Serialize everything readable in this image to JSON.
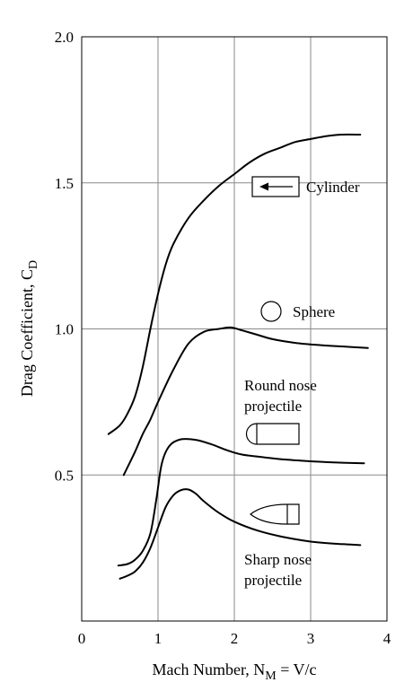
{
  "chart_data": {
    "type": "line",
    "title": "",
    "xlabel": "Mach Number, N",
    "xlabel_sub": "M",
    "xlabel_tail": " = V/c",
    "ylabel": "Drag Coefficient, C",
    "ylabel_sub": "D",
    "xlim": [
      0,
      4
    ],
    "ylim": [
      0,
      2.0
    ],
    "x_ticks": [
      "0",
      "1",
      "2",
      "3",
      "4"
    ],
    "y_ticks": [
      "0.5",
      "1.0",
      "1.5",
      "2.0"
    ],
    "x_tick_values": [
      0,
      1,
      2,
      3,
      4
    ],
    "y_tick_values": [
      0.5,
      1.0,
      1.5,
      2.0
    ],
    "grid": true,
    "series": [
      {
        "name": "Cylinder",
        "x": [
          0.35,
          0.5,
          0.6,
          0.7,
          0.8,
          0.9,
          1.0,
          1.1,
          1.2,
          1.4,
          1.6,
          1.8,
          2.0,
          2.2,
          2.4,
          2.6,
          2.8,
          3.0,
          3.2,
          3.4,
          3.65
        ],
        "y": [
          0.64,
          0.67,
          0.71,
          0.77,
          0.87,
          1.0,
          1.12,
          1.22,
          1.29,
          1.38,
          1.44,
          1.49,
          1.53,
          1.57,
          1.6,
          1.62,
          1.64,
          1.65,
          1.66,
          1.665,
          1.665
        ]
      },
      {
        "name": "Sphere",
        "x": [
          0.55,
          0.7,
          0.8,
          0.9,
          1.0,
          1.2,
          1.4,
          1.6,
          1.8,
          1.95,
          2.1,
          2.3,
          2.5,
          2.8,
          3.1,
          3.4,
          3.75
        ],
        "y": [
          0.5,
          0.58,
          0.64,
          0.69,
          0.75,
          0.86,
          0.95,
          0.99,
          1.0,
          1.005,
          0.995,
          0.98,
          0.965,
          0.952,
          0.945,
          0.94,
          0.935
        ]
      },
      {
        "name": "Round nose projectile",
        "x": [
          0.48,
          0.6,
          0.7,
          0.8,
          0.9,
          0.98,
          1.05,
          1.15,
          1.3,
          1.5,
          1.7,
          1.9,
          2.1,
          2.4,
          2.7,
          3.0,
          3.3,
          3.7
        ],
        "y": [
          0.19,
          0.195,
          0.21,
          0.24,
          0.3,
          0.42,
          0.54,
          0.6,
          0.622,
          0.62,
          0.605,
          0.585,
          0.57,
          0.56,
          0.552,
          0.547,
          0.543,
          0.54
        ]
      },
      {
        "name": "Sharp nose projectile",
        "x": [
          0.5,
          0.6,
          0.7,
          0.8,
          0.9,
          1.0,
          1.1,
          1.2,
          1.3,
          1.4,
          1.5,
          1.6,
          1.8,
          2.0,
          2.3,
          2.6,
          3.0,
          3.3,
          3.65
        ],
        "y": [
          0.145,
          0.155,
          0.17,
          0.2,
          0.25,
          0.32,
          0.39,
          0.43,
          0.448,
          0.45,
          0.435,
          0.41,
          0.37,
          0.34,
          0.31,
          0.29,
          0.272,
          0.265,
          0.26
        ]
      }
    ],
    "annotations": {
      "cylinder": "Cylinder",
      "sphere": "Sphere",
      "round_nose_line1": "Round nose",
      "round_nose_line2": "projectile",
      "sharp_nose_line1": "Sharp nose",
      "sharp_nose_line2": "projectile"
    }
  }
}
